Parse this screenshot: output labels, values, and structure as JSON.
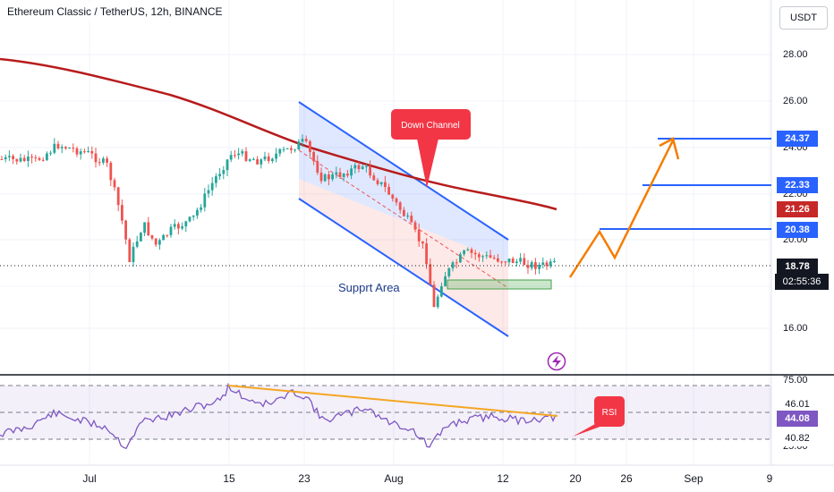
{
  "header": {
    "title": "Ethereum Classic / TetherUS, 12h, BINANCE",
    "currency": "USDT"
  },
  "price_axis": {
    "ticks": [
      "28.00",
      "26.00",
      "24.00",
      "22.00",
      "20.00",
      "16.00"
    ]
  },
  "price_labels": [
    {
      "value": "24.37",
      "color": "#2962ff"
    },
    {
      "value": "22.33",
      "color": "#2962ff"
    },
    {
      "value": "21.26",
      "color": "#c62828"
    },
    {
      "value": "20.38",
      "color": "#2962ff"
    },
    {
      "value": "18.78",
      "color": "#131722"
    }
  ],
  "countdown": "02:55:36",
  "rsi_axis": {
    "ticks": [
      "75.00",
      "25.00"
    ],
    "labels": [
      {
        "value": "46.01",
        "color": "#ffffff",
        "text_color": "#131722"
      },
      {
        "value": "44.08",
        "color": "#7e57c2",
        "text_color": "#ffffff"
      },
      {
        "value": "40.82",
        "color": "#ffffff",
        "text_color": "#131722"
      }
    ]
  },
  "time_axis": {
    "labels": [
      "Jul",
      "15",
      "23",
      "Aug",
      "12",
      "20",
      "26",
      "Sep",
      "9"
    ]
  },
  "annotations": {
    "down_channel": "Down Channel",
    "support_area": "Supprt Area",
    "rsi": "RSI"
  },
  "colors": {
    "up": "#26a69a",
    "down": "#ef5350",
    "channel": "#2962ff",
    "ma": "#b71c1c",
    "projection": "#f57c00",
    "rsi": "#7e57c2",
    "trendline": "#f5a623"
  }
}
